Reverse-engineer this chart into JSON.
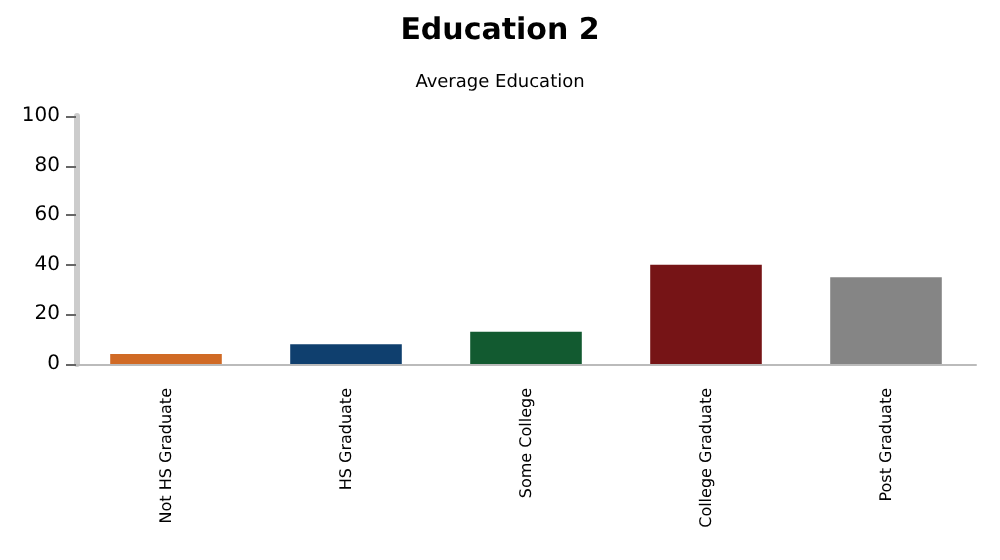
{
  "chart_data": {
    "type": "bar",
    "title": "Education 2",
    "subtitle": "Average Education",
    "categories": [
      "Not HS Graduate",
      "HS Graduate",
      "Some College",
      "College Graduate",
      "Post Graduate"
    ],
    "values": [
      4,
      8,
      13,
      40,
      35
    ],
    "colors": [
      "#d06a25",
      "#0f3f6e",
      "#125a30",
      "#761416",
      "#858585"
    ],
    "ylim": [
      0,
      100
    ],
    "yticks": [
      0,
      20,
      40,
      60,
      80,
      100
    ]
  }
}
